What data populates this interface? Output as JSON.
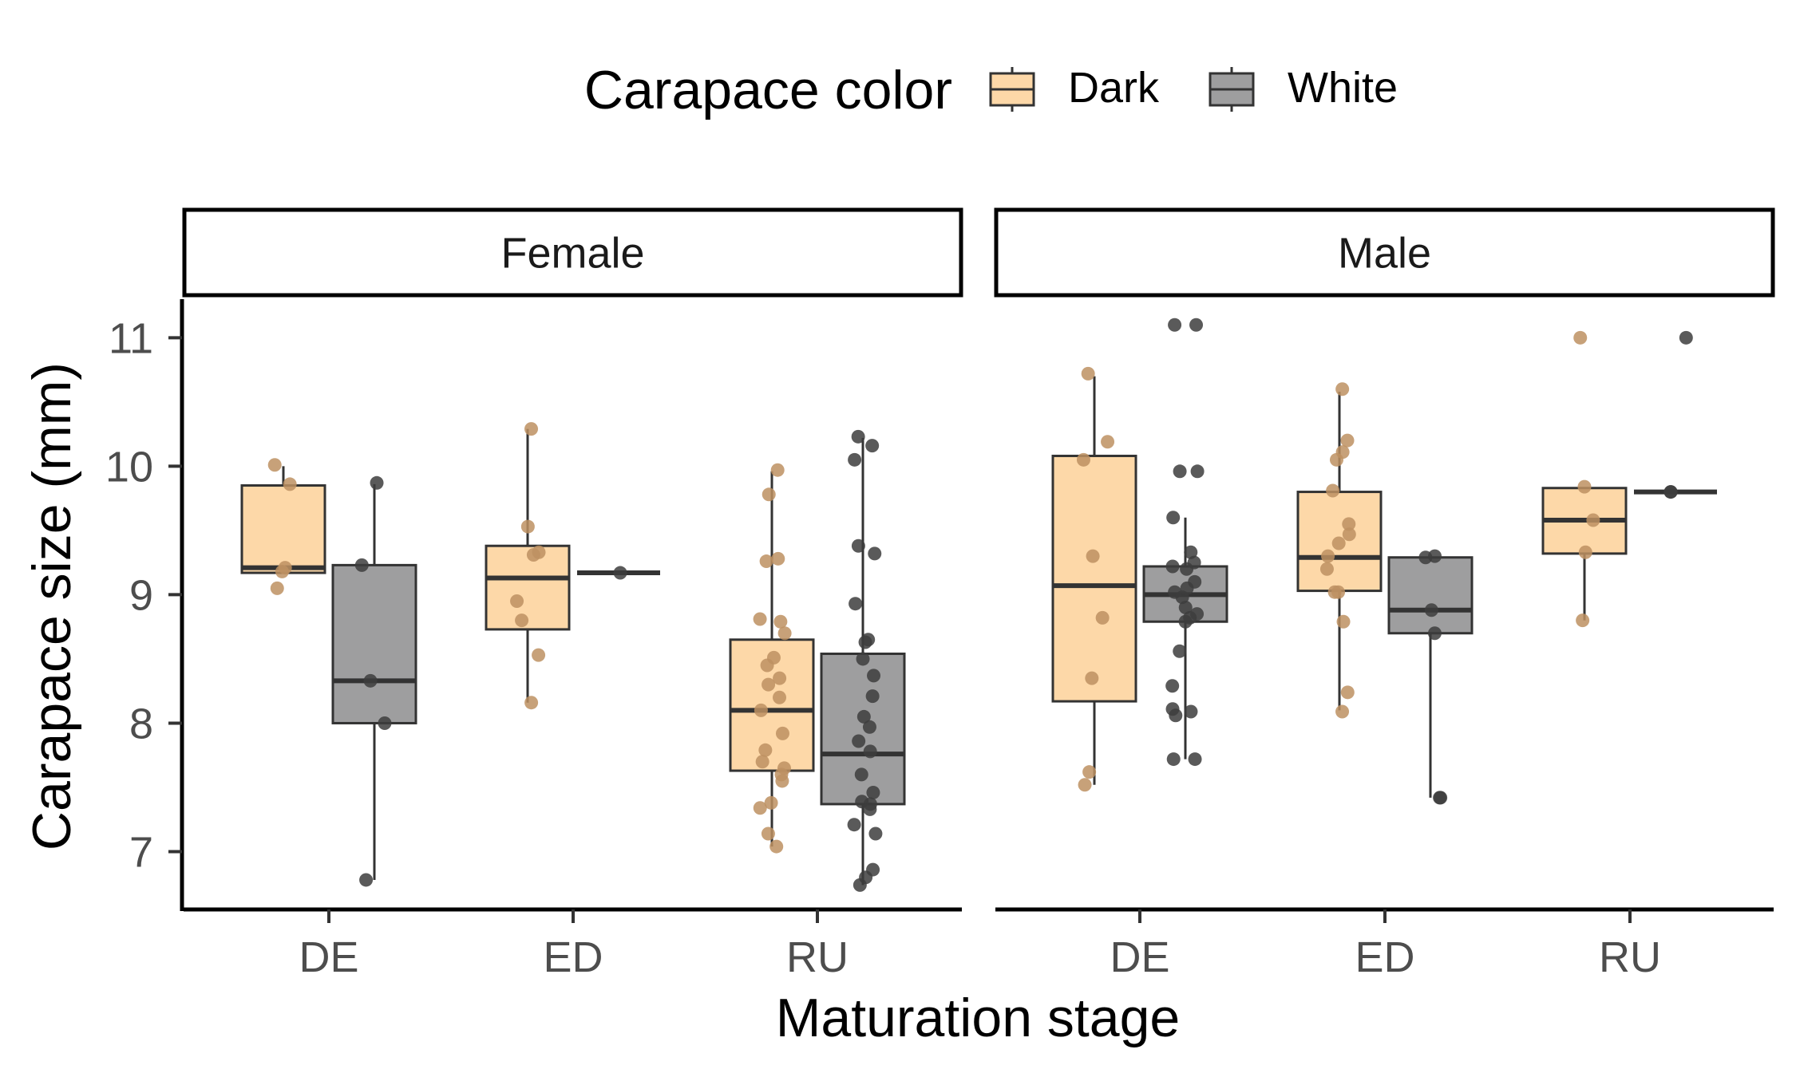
{
  "chart_data": {
    "type": "box",
    "title": "",
    "xlabel": "Maturation stage",
    "ylabel": "Carapace size (mm)",
    "ylim": [
      6.55,
      11.3
    ],
    "yticks": [
      7,
      8,
      9,
      10,
      11
    ],
    "categories": [
      "DE",
      "ED",
      "RU"
    ],
    "legend": {
      "title": "Carapace color",
      "position": "top",
      "entries": [
        "Dark",
        "White"
      ]
    },
    "colors": {
      "Dark": "#fdd8a8",
      "White": "#9e9e9f",
      "dark_points": "#bd9162",
      "white_points": "#3d3d3d",
      "box_line": "#333333"
    },
    "grid": false,
    "panels": [
      {
        "name": "Female",
        "groups": [
          {
            "category": "DE",
            "color": "Dark",
            "min": 9.17,
            "q1": 9.17,
            "median": 9.21,
            "q3": 9.85,
            "max": 10.0,
            "points": [
              10.01,
              9.86,
              9.21,
              9.18,
              9.05
            ]
          },
          {
            "category": "DE",
            "color": "White",
            "min": 6.78,
            "q1": 8.0,
            "median": 8.33,
            "q3": 9.23,
            "max": 9.86,
            "points": [
              9.87,
              9.23,
              8.33,
              8.0,
              6.78
            ]
          },
          {
            "category": "ED",
            "color": "Dark",
            "min": 8.16,
            "q1": 8.73,
            "median": 9.13,
            "q3": 9.38,
            "max": 10.29,
            "points": [
              10.29,
              9.53,
              9.33,
              9.31,
              8.95,
              8.8,
              8.53,
              8.16
            ]
          },
          {
            "category": "ED",
            "color": "White",
            "min": 9.17,
            "q1": 9.17,
            "median": 9.17,
            "q3": 9.17,
            "max": 9.17,
            "points": [
              9.17
            ]
          },
          {
            "category": "RU",
            "color": "Dark",
            "min": 7.04,
            "q1": 7.63,
            "median": 8.1,
            "q3": 8.65,
            "max": 9.96,
            "points": [
              9.97,
              9.78,
              9.28,
              9.26,
              8.81,
              8.79,
              8.7,
              8.51,
              8.45,
              8.35,
              8.3,
              8.2,
              8.1,
              7.92,
              7.79,
              7.7,
              7.65,
              7.6,
              7.55,
              7.38,
              7.34,
              7.14,
              7.04
            ]
          },
          {
            "category": "RU",
            "color": "White",
            "min": 6.74,
            "q1": 7.37,
            "median": 7.76,
            "q3": 8.54,
            "max": 10.22,
            "points": [
              10.23,
              10.16,
              10.05,
              9.38,
              9.32,
              8.93,
              8.65,
              8.63,
              8.5,
              8.37,
              8.21,
              8.05,
              7.97,
              7.86,
              7.78,
              7.6,
              7.46,
              7.39,
              7.37,
              7.33,
              7.21,
              7.14,
              6.86,
              6.8,
              6.74
            ]
          }
        ]
      },
      {
        "name": "Male",
        "groups": [
          {
            "category": "DE",
            "color": "Dark",
            "min": 7.52,
            "q1": 8.17,
            "median": 9.07,
            "q3": 10.08,
            "max": 10.7,
            "points": [
              10.72,
              10.19,
              10.05,
              9.3,
              8.82,
              8.35,
              7.62,
              7.52
            ]
          },
          {
            "category": "DE",
            "color": "White",
            "min": 7.72,
            "q1": 8.79,
            "median": 9.0,
            "q3": 9.22,
            "max": 9.6,
            "points": [
              11.1,
              11.1,
              9.96,
              9.96,
              9.6,
              9.33,
              9.25,
              9.22,
              9.2,
              9.1,
              9.05,
              9.02,
              8.98,
              8.9,
              8.85,
              8.82,
              8.79,
              8.56,
              8.29,
              8.11,
              8.09,
              8.06,
              7.72,
              7.72
            ]
          },
          {
            "category": "ED",
            "color": "Dark",
            "min": 8.1,
            "q1": 9.03,
            "median": 9.29,
            "q3": 9.8,
            "max": 10.58,
            "points": [
              10.6,
              10.2,
              10.11,
              10.05,
              9.81,
              9.55,
              9.47,
              9.4,
              9.3,
              9.2,
              9.02,
              9.02,
              8.79,
              8.24,
              8.09
            ]
          },
          {
            "category": "ED",
            "color": "White",
            "min": 7.42,
            "q1": 8.7,
            "median": 8.88,
            "q3": 9.29,
            "max": 9.29,
            "points": [
              9.3,
              9.29,
              8.88,
              8.7,
              7.42,
              7.42
            ]
          },
          {
            "category": "RU",
            "color": "Dark",
            "min": 8.8,
            "q1": 9.32,
            "median": 9.58,
            "q3": 9.83,
            "max": 9.83,
            "points": [
              11.0,
              9.84,
              9.58,
              9.33,
              8.8
            ]
          },
          {
            "category": "RU",
            "color": "White",
            "min": 9.8,
            "q1": 9.8,
            "median": 9.8,
            "q3": 9.8,
            "max": 9.8,
            "points": [
              11.0,
              9.8,
              9.8
            ]
          }
        ]
      }
    ]
  }
}
